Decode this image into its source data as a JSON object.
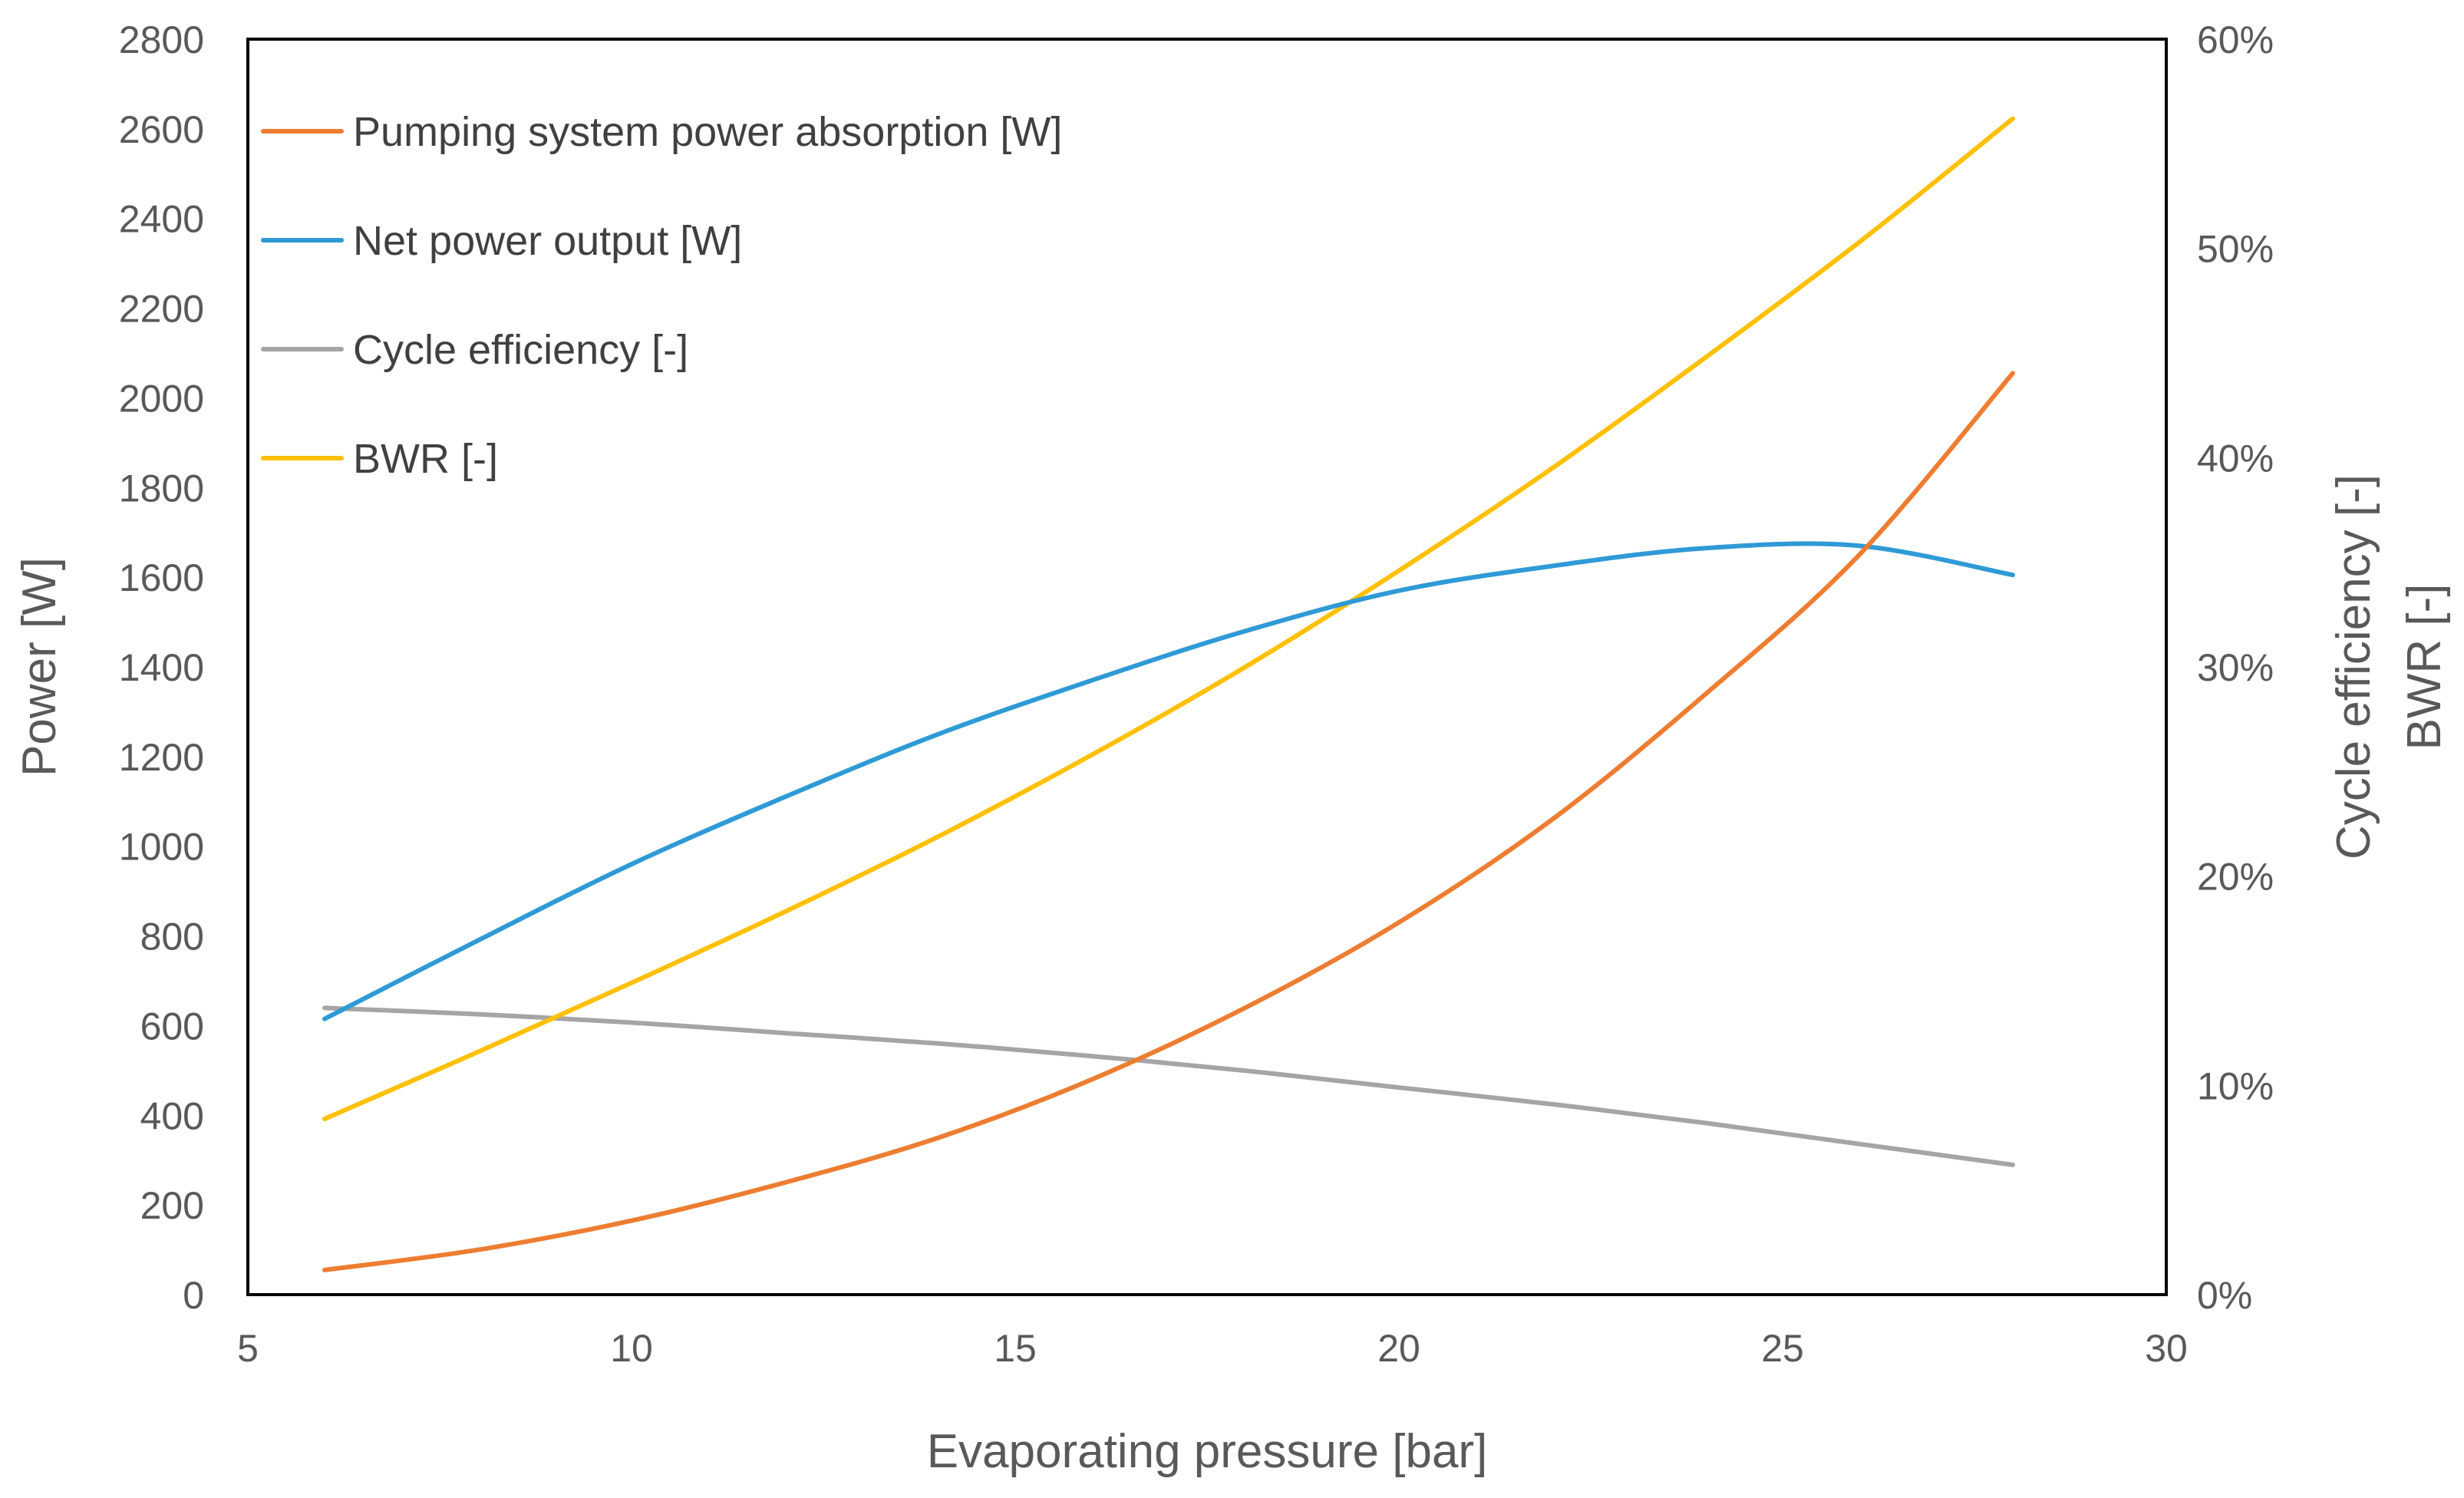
{
  "chart_data": {
    "type": "line",
    "title": "",
    "xlabel": "Evaporating pressure [bar]",
    "ylabel_left": "Power [W]",
    "ylabel_right_lines": [
      "Cycle efficiency [-]",
      "BWR [-]"
    ],
    "xlim": [
      5,
      30
    ],
    "ylim_left": [
      0,
      2800
    ],
    "ylim_right": [
      0,
      0.6
    ],
    "x_ticks": [
      "5",
      "10",
      "15",
      "20",
      "25",
      "30"
    ],
    "y_left_ticks": [
      "0",
      "200",
      "400",
      "600",
      "800",
      "1000",
      "1200",
      "1400",
      "1600",
      "1800",
      "2000",
      "2200",
      "2400",
      "2600",
      "2800"
    ],
    "y_right_ticks": [
      "0%",
      "10%",
      "20%",
      "30%",
      "40%",
      "50%",
      "60%"
    ],
    "grid": false,
    "legend_position": "top-left",
    "x": [
      6,
      8,
      10,
      12,
      14,
      16,
      18,
      20,
      22,
      24,
      26,
      28
    ],
    "series": [
      {
        "name": "Pumping system power absorption [W]",
        "axis": "left",
        "color": "#ED7D31",
        "values": [
          55,
          100,
          165,
          250,
          350,
          480,
          640,
          830,
          1060,
          1340,
          1650,
          2055
        ]
      },
      {
        "name": "Net power output [W]",
        "axis": "left",
        "color": "#2E9AD6",
        "values": [
          615,
          790,
          960,
          1110,
          1250,
          1370,
          1480,
          1570,
          1625,
          1665,
          1670,
          1605
        ]
      },
      {
        "name": "Cycle efficiency [-]",
        "axis": "right",
        "color": "#A5A5A5",
        "values": [
          0.137,
          0.134,
          0.13,
          0.125,
          0.12,
          0.114,
          0.107,
          0.099,
          0.091,
          0.082,
          0.072,
          0.062
        ]
      },
      {
        "name": "BWR [-]",
        "axis": "right",
        "color": "#FFC000",
        "values": [
          0.084,
          0.116,
          0.149,
          0.183,
          0.219,
          0.258,
          0.3,
          0.346,
          0.395,
          0.448,
          0.503,
          0.562
        ]
      }
    ]
  }
}
